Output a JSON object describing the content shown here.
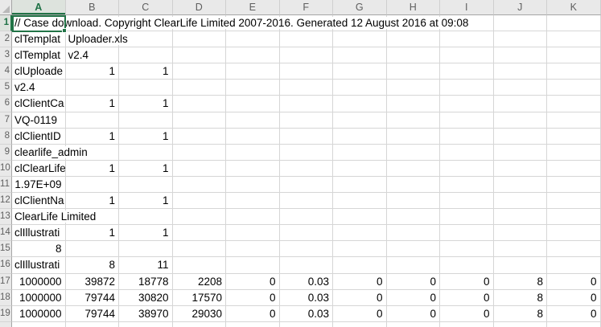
{
  "sheet": {
    "colors": {
      "accent_green": "#217346",
      "gridline": "#D6D6D6",
      "header_bg": "#E9E9E9",
      "selected_header_bg": "#DDE3DD",
      "header_text": "#5F5F5F",
      "cell_text": "#000000"
    },
    "columns": [
      "A",
      "B",
      "C",
      "D",
      "E",
      "F",
      "G",
      "H",
      "I",
      "J",
      "K"
    ],
    "selection": {
      "cell": "A1",
      "column": "A",
      "row": "1"
    },
    "rows": [
      {
        "n": "1",
        "cells": [
          {
            "c": "A",
            "v": "// Case download. Copyright ClearLife Limited 2007-2016. Generated 12 August 2016 at 09:08",
            "a": "l",
            "ovf": true
          }
        ]
      },
      {
        "n": "2",
        "cells": [
          {
            "c": "A",
            "v": "clTemplat",
            "a": "l"
          },
          {
            "c": "B",
            "v": "Uploader.xls",
            "a": "l",
            "ovf": true
          }
        ]
      },
      {
        "n": "3",
        "cells": [
          {
            "c": "A",
            "v": "clTemplat",
            "a": "l"
          },
          {
            "c": "B",
            "v": "v2.4",
            "a": "l"
          }
        ]
      },
      {
        "n": "4",
        "cells": [
          {
            "c": "A",
            "v": "clUploade",
            "a": "l"
          },
          {
            "c": "B",
            "v": "1",
            "a": "r"
          },
          {
            "c": "C",
            "v": "1",
            "a": "r"
          }
        ]
      },
      {
        "n": "5",
        "cells": [
          {
            "c": "A",
            "v": "v2.4",
            "a": "l"
          }
        ]
      },
      {
        "n": "6",
        "cells": [
          {
            "c": "A",
            "v": "clClientCa",
            "a": "l"
          },
          {
            "c": "B",
            "v": "1",
            "a": "r"
          },
          {
            "c": "C",
            "v": "1",
            "a": "r"
          }
        ]
      },
      {
        "n": "7",
        "cells": [
          {
            "c": "A",
            "v": "VQ-0119",
            "a": "l"
          }
        ]
      },
      {
        "n": "8",
        "cells": [
          {
            "c": "A",
            "v": "clClientID",
            "a": "l"
          },
          {
            "c": "B",
            "v": "1",
            "a": "r"
          },
          {
            "c": "C",
            "v": "1",
            "a": "r"
          }
        ]
      },
      {
        "n": "9",
        "cells": [
          {
            "c": "A",
            "v": "clearlife_admin",
            "a": "l",
            "ovf": true
          }
        ]
      },
      {
        "n": "10",
        "cells": [
          {
            "c": "A",
            "v": "clClearLife",
            "a": "l"
          },
          {
            "c": "B",
            "v": "1",
            "a": "r"
          },
          {
            "c": "C",
            "v": "1",
            "a": "r"
          }
        ]
      },
      {
        "n": "11",
        "cells": [
          {
            "c": "A",
            "v": "1.97E+09",
            "a": "r"
          }
        ]
      },
      {
        "n": "12",
        "cells": [
          {
            "c": "A",
            "v": "clClientNa",
            "a": "l"
          },
          {
            "c": "B",
            "v": "1",
            "a": "r"
          },
          {
            "c": "C",
            "v": "1",
            "a": "r"
          }
        ]
      },
      {
        "n": "13",
        "cells": [
          {
            "c": "A",
            "v": "ClearLife Limited",
            "a": "l",
            "ovf": true
          }
        ]
      },
      {
        "n": "14",
        "cells": [
          {
            "c": "A",
            "v": "clIllustrati",
            "a": "l"
          },
          {
            "c": "B",
            "v": "1",
            "a": "r"
          },
          {
            "c": "C",
            "v": "1",
            "a": "r"
          }
        ]
      },
      {
        "n": "15",
        "cells": [
          {
            "c": "A",
            "v": "8",
            "a": "r"
          }
        ]
      },
      {
        "n": "16",
        "cells": [
          {
            "c": "A",
            "v": "clIllustrati",
            "a": "l"
          },
          {
            "c": "B",
            "v": "8",
            "a": "r"
          },
          {
            "c": "C",
            "v": "11",
            "a": "r"
          }
        ]
      },
      {
        "n": "17",
        "cells": [
          {
            "c": "A",
            "v": "1000000",
            "a": "r"
          },
          {
            "c": "B",
            "v": "39872",
            "a": "r"
          },
          {
            "c": "C",
            "v": "18778",
            "a": "r"
          },
          {
            "c": "D",
            "v": "2208",
            "a": "r"
          },
          {
            "c": "E",
            "v": "0",
            "a": "r"
          },
          {
            "c": "F",
            "v": "0.03",
            "a": "r"
          },
          {
            "c": "G",
            "v": "0",
            "a": "r"
          },
          {
            "c": "H",
            "v": "0",
            "a": "r"
          },
          {
            "c": "I",
            "v": "0",
            "a": "r"
          },
          {
            "c": "J",
            "v": "8",
            "a": "r"
          },
          {
            "c": "K",
            "v": "0",
            "a": "r"
          }
        ]
      },
      {
        "n": "18",
        "cells": [
          {
            "c": "A",
            "v": "1000000",
            "a": "r"
          },
          {
            "c": "B",
            "v": "79744",
            "a": "r"
          },
          {
            "c": "C",
            "v": "30820",
            "a": "r"
          },
          {
            "c": "D",
            "v": "17570",
            "a": "r"
          },
          {
            "c": "E",
            "v": "0",
            "a": "r"
          },
          {
            "c": "F",
            "v": "0.03",
            "a": "r"
          },
          {
            "c": "G",
            "v": "0",
            "a": "r"
          },
          {
            "c": "H",
            "v": "0",
            "a": "r"
          },
          {
            "c": "I",
            "v": "0",
            "a": "r"
          },
          {
            "c": "J",
            "v": "8",
            "a": "r"
          },
          {
            "c": "K",
            "v": "0",
            "a": "r"
          }
        ]
      },
      {
        "n": "19",
        "cells": [
          {
            "c": "A",
            "v": "1000000",
            "a": "r"
          },
          {
            "c": "B",
            "v": "79744",
            "a": "r"
          },
          {
            "c": "C",
            "v": "38970",
            "a": "r"
          },
          {
            "c": "D",
            "v": "29030",
            "a": "r"
          },
          {
            "c": "E",
            "v": "0",
            "a": "r"
          },
          {
            "c": "F",
            "v": "0.03",
            "a": "r"
          },
          {
            "c": "G",
            "v": "0",
            "a": "r"
          },
          {
            "c": "H",
            "v": "0",
            "a": "r"
          },
          {
            "c": "I",
            "v": "0",
            "a": "r"
          },
          {
            "c": "J",
            "v": "8",
            "a": "r"
          },
          {
            "c": "K",
            "v": "0",
            "a": "r"
          }
        ]
      },
      {
        "n": "",
        "cells": []
      }
    ]
  }
}
